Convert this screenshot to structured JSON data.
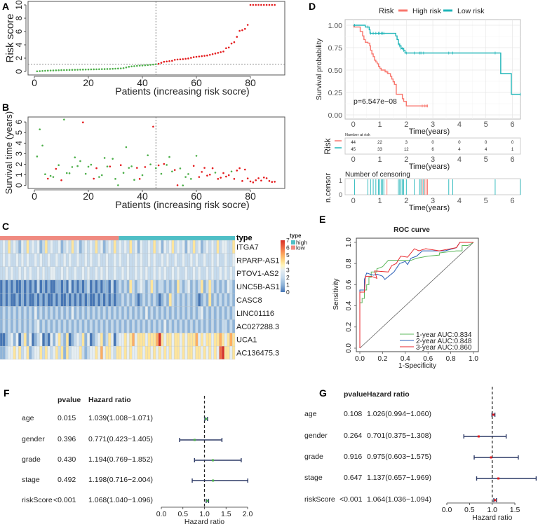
{
  "panel_labels": [
    "A",
    "B",
    "C",
    "D",
    "E",
    "F",
    "G"
  ],
  "chart_data": [
    {
      "panel": "A",
      "type": "scatter",
      "xlabel": "Patients (increasing risk socre)",
      "ylabel": "Risk score",
      "xticks": [
        0,
        20,
        40,
        60,
        80
      ],
      "yticks": [
        0,
        2,
        4,
        6,
        8,
        10
      ],
      "xlim": [
        0,
        90
      ],
      "ylim": [
        0,
        10
      ],
      "cutoff_patient": 45,
      "cutoff_score": 1.08,
      "colors": {
        "low": "#4daf4a",
        "high": "#e41a1c"
      },
      "values": [
        0.02,
        0.05,
        0.08,
        0.1,
        0.12,
        0.14,
        0.15,
        0.17,
        0.18,
        0.2,
        0.21,
        0.22,
        0.23,
        0.24,
        0.25,
        0.26,
        0.27,
        0.28,
        0.29,
        0.3,
        0.31,
        0.32,
        0.33,
        0.34,
        0.35,
        0.36,
        0.37,
        0.38,
        0.4,
        0.42,
        0.44,
        0.46,
        0.5,
        0.6,
        0.7,
        0.76,
        0.8,
        0.84,
        0.88,
        0.9,
        0.93,
        0.96,
        1.0,
        1.04,
        1.08,
        1.15,
        1.3,
        1.45,
        1.5,
        1.55,
        1.6,
        1.75,
        1.8,
        1.82,
        1.85,
        1.9,
        1.95,
        2.05,
        2.15,
        2.2,
        2.25,
        2.3,
        2.35,
        2.4,
        2.5,
        2.6,
        2.7,
        2.8,
        2.9,
        3.0,
        3.5,
        3.6,
        4.2,
        4.4,
        5.2,
        6.1,
        6.2,
        6.4,
        7.0,
        10,
        10,
        10,
        10,
        10,
        10,
        10,
        10,
        10,
        10
      ]
    },
    {
      "panel": "B",
      "type": "scatter",
      "xlabel": "Patients (increasing risk socre)",
      "ylabel": "Survival time (years)",
      "xticks": [
        0,
        20,
        40,
        60,
        80
      ],
      "yticks": [
        0,
        1,
        2,
        3,
        4,
        5,
        6
      ],
      "xlim": [
        0,
        90
      ],
      "ylim": [
        0,
        6.3
      ],
      "cutoff_patient": 45,
      "colors": {
        "alive": "#4daf4a",
        "dead": "#e41a1c"
      },
      "values": [
        2.74,
        5.3,
        3.77,
        1.06,
        0.64,
        0.9,
        0.8,
        1.57,
        1.92,
        0.49,
        6.23,
        1.17,
        1.15,
        1.74,
        2.65,
        1.83,
        2.3,
        5.96,
        1.1,
        1.77,
        1.96,
        0.64,
        1.63,
        0.8,
        0.97,
        2.6,
        1.79,
        1.79,
        2.52,
        0.62,
        0.02,
        1.92,
        1.19,
        3.62,
        1.66,
        1.81,
        0.53,
        1.66,
        0.62,
        0.97,
        1.74,
        2.85,
        1.99,
        5.56,
        1.63,
        1.9,
        1.1,
        2.03,
        1.94,
        2.69,
        1.32,
        1.46,
        0.02,
        1.61,
        0,
        0.8,
        1.08,
        0.62,
        1.85,
        2.8,
        0.8,
        1.28,
        1.66,
        0.93,
        1.02,
        1.63,
        1.21,
        0.62,
        0.73,
        1.17,
        0.84,
        0.97,
        1.32,
        0.62,
        1.41,
        1.63,
        0.42,
        1.5,
        0.66,
        0.38,
        0.29,
        0.49,
        0.68,
        0.46,
        0.75,
        0.68,
        0.42,
        0.33,
        0.35
      ],
      "status_dead": [
        0,
        0,
        0,
        0,
        1,
        0,
        0,
        1,
        0,
        1,
        0,
        0,
        0,
        0,
        0,
        0,
        0,
        1,
        0,
        0,
        0,
        1,
        1,
        0,
        0,
        0,
        0,
        1,
        0,
        0,
        0,
        1,
        0,
        0,
        0,
        0,
        0,
        1,
        1,
        0,
        1,
        0,
        0,
        1,
        0,
        1,
        0,
        1,
        0,
        0,
        0,
        1,
        1,
        0,
        0,
        0,
        0,
        0,
        1,
        0,
        1,
        1,
        1,
        1,
        1,
        1,
        0,
        1,
        1,
        1,
        1,
        1,
        0,
        1,
        1,
        1,
        1,
        1,
        1,
        1,
        1,
        1,
        1,
        1,
        1,
        1,
        1,
        1,
        1
      ]
    },
    {
      "panel": "C",
      "type": "heatmap",
      "annotation_title": "type",
      "groups": [
        {
          "label": "low",
          "count": 45,
          "color": "#f08a80"
        },
        {
          "label": "high",
          "count": 44,
          "color": "#4fbfc6"
        }
      ],
      "legend_order": [
        "high",
        "low"
      ],
      "colorbar_ticks": [
        0,
        1,
        2,
        3,
        4,
        5,
        6,
        7
      ],
      "rows": [
        {
          "gene": "ITGA7",
          "values": "23242321324232312423223123242312323242312324232324231322324231323423231324231232324233224"
        },
        {
          "gene": "RPARP-AS1",
          "values": "23232232323223232232232232322322323223223223232232232322323223232232232232322322323223223"
        },
        {
          "gene": "PTOV1-AS2",
          "values": "22323223232322323223322323223223232232323223223232232323223232322323223223232232322323232"
        },
        {
          "gene": "UNC5B-AS1",
          "values": "01010100101010201010011010201010120101011020121214212321242122121214212312124124212121321"
        },
        {
          "gene": "CASC8",
          "values": "01010010101001010100101001010101010010101010112121210121212101214212121212101214121212121"
        },
        {
          "gene": "LINC01116",
          "values": "12121212121213121212121212131212121212121212121212121213121212121212121212123121212121212"
        },
        {
          "gene": "AC027288.3",
          "values": "12121212121212312121212121212121212121212121212121212121212121312121212121212121212122121"
        },
        {
          "gene": "UCA1",
          "values": "00123130241301230103134214012324130123412430233434534443444574344344343444534344344543454"
        },
        {
          "gene": "AC136475.3",
          "values": "11233434234123342432342414233342123343534432443434334434434343434344343443443434343674434"
        }
      ]
    },
    {
      "panel": "D",
      "type": "line",
      "legend_title": "Risk",
      "ylabel": "Survival probability",
      "xlabel": "Time(years)",
      "xticks": [
        0,
        1,
        2,
        3,
        4,
        5,
        6
      ],
      "yticks": [
        "0.00",
        "0.25",
        "0.50",
        "0.75",
        "1.00"
      ],
      "xlim": [
        0,
        6.3
      ],
      "ylim": [
        0,
        1
      ],
      "pvalue": "p=6.547e−08",
      "series": [
        {
          "name": "High risk",
          "color": "#f8766d",
          "steps": [
            [
              0,
              1
            ],
            [
              0.02,
              0.98
            ],
            [
              0.26,
              0.93
            ],
            [
              0.35,
              0.88
            ],
            [
              0.4,
              0.84
            ],
            [
              0.45,
              0.81
            ],
            [
              0.55,
              0.8
            ],
            [
              0.62,
              0.77
            ],
            [
              0.65,
              0.72
            ],
            [
              0.7,
              0.68
            ],
            [
              0.75,
              0.65
            ],
            [
              0.8,
              0.61
            ],
            [
              0.85,
              0.59
            ],
            [
              0.9,
              0.57
            ],
            [
              0.95,
              0.54
            ],
            [
              1.0,
              0.52
            ],
            [
              1.05,
              0.5
            ],
            [
              1.2,
              0.48
            ],
            [
              1.3,
              0.46
            ],
            [
              1.4,
              0.43
            ],
            [
              1.45,
              0.4
            ],
            [
              1.5,
              0.37
            ],
            [
              1.55,
              0.34
            ],
            [
              1.62,
              0.23
            ],
            [
              1.85,
              0.18
            ],
            [
              1.9,
              0.15
            ],
            [
              2.0,
              0.1
            ]
          ],
          "end": 2.8,
          "censor": [
            1.27,
            2.6,
            2.7,
            2.75,
            2.8
          ]
        },
        {
          "name": "Low risk",
          "color": "#1fb5b8",
          "steps": [
            [
              0,
              1
            ],
            [
              0.45,
              0.98
            ],
            [
              0.6,
              0.95
            ],
            [
              0.63,
              0.91
            ],
            [
              1.6,
              0.88
            ],
            [
              1.65,
              0.84
            ],
            [
              1.7,
              0.79
            ],
            [
              1.75,
              0.77
            ],
            [
              1.8,
              0.74
            ],
            [
              1.9,
              0.72
            ],
            [
              1.95,
              0.69
            ],
            [
              5.56,
              0.46
            ],
            [
              5.96,
              0.23
            ]
          ],
          "end": 6.3,
          "censor": [
            0.05,
            0.55,
            0.65,
            0.75,
            0.85,
            0.95,
            1.0,
            1.05,
            1.1,
            1.15,
            1.7,
            1.75,
            1.8,
            1.85,
            1.9,
            2.0,
            2.3,
            2.5,
            2.55,
            2.65,
            3.6,
            3.75,
            5.35,
            6.3
          ]
        }
      ],
      "risk_table": {
        "title": "Number at risk",
        "ylabel": "Risk",
        "xlabel": "Time(years)",
        "times": [
          0,
          1,
          2,
          3,
          4,
          5,
          6
        ],
        "rows": [
          {
            "group": "High risk",
            "counts": [
              "44",
              "22",
              "3",
              "0",
              "0",
              "0",
              "0"
            ]
          },
          {
            "group": "Low risk",
            "counts": [
              "45",
              "33",
              "12",
              "6",
              "4",
              "4",
              "1"
            ]
          }
        ]
      },
      "censor_plot": {
        "title": "Number of censoring",
        "ylabel": "n.censor",
        "xlabel": "Time(years)",
        "yticks": [
          "0",
          "1"
        ]
      }
    },
    {
      "panel": "E",
      "type": "line",
      "title": "ROC curve",
      "xlabel": "1-Specificity",
      "ylabel": "Sensitivity",
      "xticks": [
        "0.0",
        "0.2",
        "0.4",
        "0.6",
        "0.8",
        "1.0"
      ],
      "yticks": [
        "0.0",
        "0.2",
        "0.4",
        "0.6",
        "0.8",
        "1.0"
      ],
      "xlim": [
        0,
        1
      ],
      "ylim": [
        0,
        1
      ],
      "legend_position": "bottom-right",
      "series": [
        {
          "name": "1-year AUC:0.834",
          "color": "#5cb85c",
          "points": [
            [
              0,
              0
            ],
            [
              0,
              0.43
            ],
            [
              0.02,
              0.43
            ],
            [
              0.02,
              0.47
            ],
            [
              0.04,
              0.47
            ],
            [
              0.04,
              0.55
            ],
            [
              0.06,
              0.55
            ],
            [
              0.06,
              0.6
            ],
            [
              0.08,
              0.6
            ],
            [
              0.08,
              0.67
            ],
            [
              0.1,
              0.67
            ],
            [
              0.1,
              0.72
            ],
            [
              0.15,
              0.72
            ],
            [
              0.15,
              0.75
            ],
            [
              0.2,
              0.77
            ],
            [
              0.25,
              0.83
            ],
            [
              0.45,
              0.83
            ],
            [
              0.5,
              0.85
            ],
            [
              0.6,
              0.87
            ],
            [
              0.7,
              0.88
            ],
            [
              0.7,
              0.9
            ],
            [
              0.85,
              0.92
            ],
            [
              0.9,
              0.92
            ],
            [
              0.9,
              0.97
            ],
            [
              0.95,
              0.97
            ],
            [
              1,
              1
            ]
          ]
        },
        {
          "name": "2-year AUC:0.848",
          "color": "#2c5fb8",
          "points": [
            [
              0,
              0
            ],
            [
              0,
              0.55
            ],
            [
              0.04,
              0.55
            ],
            [
              0.04,
              0.65
            ],
            [
              0.06,
              0.71
            ],
            [
              0.12,
              0.69
            ],
            [
              0.15,
              0.7
            ],
            [
              0.2,
              0.68
            ],
            [
              0.22,
              0.65
            ],
            [
              0.3,
              0.72
            ],
            [
              0.35,
              0.8
            ],
            [
              0.4,
              0.82
            ],
            [
              0.42,
              0.79
            ],
            [
              0.45,
              0.85
            ],
            [
              0.5,
              0.87
            ],
            [
              0.55,
              0.92
            ],
            [
              0.75,
              0.92
            ],
            [
              0.85,
              0.95
            ],
            [
              0.88,
              1.0
            ],
            [
              1,
              1
            ]
          ]
        },
        {
          "name": "3-year AUC:0.860",
          "color": "#e8262b",
          "points": [
            [
              0,
              0
            ],
            [
              0,
              0.53
            ],
            [
              0.04,
              0.53
            ],
            [
              0.05,
              0.68
            ],
            [
              0.1,
              0.68
            ],
            [
              0.15,
              0.66
            ],
            [
              0.13,
              0.73
            ],
            [
              0.25,
              0.72
            ],
            [
              0.28,
              0.78
            ],
            [
              0.32,
              0.8
            ],
            [
              0.36,
              0.87
            ],
            [
              0.42,
              0.86
            ],
            [
              0.48,
              0.94
            ],
            [
              0.52,
              0.92
            ],
            [
              0.58,
              0.94
            ],
            [
              0.7,
              0.92
            ],
            [
              0.85,
              0.95
            ],
            [
              0.88,
              1.0
            ],
            [
              0.95,
              1.0
            ],
            [
              1,
              1
            ]
          ]
        }
      ]
    },
    {
      "panel": "F",
      "type": "forest",
      "headers": {
        "pvalue": "pvalue",
        "hr": "Hazard ratio"
      },
      "xlabel": "Hazard ratio",
      "xticks": [
        "0.0",
        "0.5",
        "1.0",
        "1.5",
        "2.0"
      ],
      "xlim": [
        0,
        2
      ],
      "point_color": "#4daf4a",
      "rows": [
        {
          "label": "age",
          "pvalue": "0.015",
          "hr_text": "1.039(1.008−1.071)",
          "hr": 1.039,
          "lo": 1.008,
          "hi": 1.071
        },
        {
          "label": "gender",
          "pvalue": "0.396",
          "hr_text": "0.771(0.423−1.405)",
          "hr": 0.771,
          "lo": 0.423,
          "hi": 1.405
        },
        {
          "label": "grade",
          "pvalue": "0.430",
          "hr_text": "1.194(0.769−1.852)",
          "hr": 1.194,
          "lo": 0.769,
          "hi": 1.852
        },
        {
          "label": "stage",
          "pvalue": "0.492",
          "hr_text": "1.198(0.716−2.004)",
          "hr": 1.198,
          "lo": 0.716,
          "hi": 2.004
        },
        {
          "label": "riskScore",
          "pvalue": "<0.001",
          "hr_text": "1.068(1.040−1.096)",
          "hr": 1.068,
          "lo": 1.04,
          "hi": 1.096
        }
      ]
    },
    {
      "panel": "G",
      "type": "forest",
      "headers": {
        "pvalue": "pvalue",
        "hr": "Hazard ratio"
      },
      "xlabel": "Hazard ratio",
      "xticks": [
        "0.0",
        "0.5",
        "1.0",
        "1.5"
      ],
      "xlim": [
        0,
        1.5
      ],
      "point_color": "#e41a1c",
      "rows": [
        {
          "label": "age",
          "pvalue": "0.108",
          "hr_text": "1.026(0.994−1.060)",
          "hr": 1.026,
          "lo": 0.994,
          "hi": 1.06
        },
        {
          "label": "gender",
          "pvalue": "0.264",
          "hr_text": "0.701(0.375−1.308)",
          "hr": 0.701,
          "lo": 0.375,
          "hi": 1.308
        },
        {
          "label": "grade",
          "pvalue": "0.916",
          "hr_text": "0.975(0.603−1.575)",
          "hr": 0.975,
          "lo": 0.603,
          "hi": 1.575
        },
        {
          "label": "stage",
          "pvalue": "0.647",
          "hr_text": "1.137(0.657−1.969)",
          "hr": 1.137,
          "lo": 0.657,
          "hi": 1.969
        },
        {
          "label": "riskScore",
          "pvalue": "<0.001",
          "hr_text": "1.064(1.036−1.094)",
          "hr": 1.064,
          "lo": 1.036,
          "hi": 1.094
        }
      ]
    }
  ]
}
